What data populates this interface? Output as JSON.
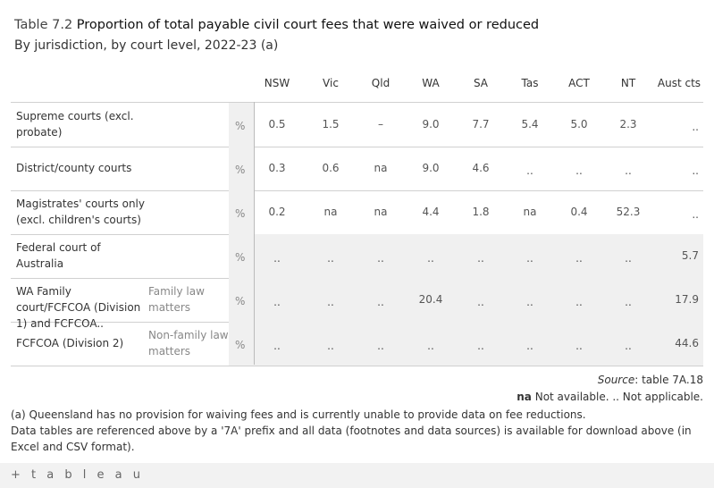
{
  "title_num": "Table 7.2",
  "title_text": "Proportion of total payable civil court fees that were waived or reduced",
  "subtitle": "By jurisdiction, by court level, 2022-23 (a)",
  "chart_data": {
    "type": "table",
    "columns": [
      "NSW",
      "Vic",
      "Qld",
      "WA",
      "SA",
      "Tas",
      "ACT",
      "NT",
      "Aust cts"
    ],
    "rows": [
      {
        "label": "Supreme courts (excl. probate)",
        "sublabel": "",
        "unit": "%",
        "values": [
          "0.5",
          "1.5",
          "–",
          "9.0",
          "7.7",
          "5.4",
          "5.0",
          "2.3",
          ".."
        ]
      },
      {
        "label": "District/county courts",
        "sublabel": "",
        "unit": "%",
        "values": [
          "0.3",
          "0.6",
          "na",
          "9.0",
          "4.6",
          "..",
          "..",
          "..",
          ".."
        ]
      },
      {
        "label": "Magistrates' courts only (excl. children's courts)",
        "sublabel": "",
        "unit": "%",
        "values": [
          "0.2",
          "na",
          "na",
          "4.4",
          "1.8",
          "na",
          "0.4",
          "52.3",
          ".."
        ]
      },
      {
        "label": "Federal court of Australia",
        "sublabel": "",
        "unit": "%",
        "values": [
          "..",
          "..",
          "..",
          "..",
          "..",
          "..",
          "..",
          "..",
          "5.7"
        ]
      },
      {
        "label": "WA Family court/FCFCOA (Division 1) and FCFCOA..",
        "sublabel": "Family law matters",
        "unit": "%",
        "values": [
          "..",
          "..",
          "..",
          "20.4",
          "..",
          "..",
          "..",
          "..",
          "17.9"
        ]
      },
      {
        "label": "FCFCOA (Division 2)",
        "sublabel": "Non-family law matters",
        "unit": "%",
        "values": [
          "..",
          "..",
          "..",
          "..",
          "..",
          "..",
          "..",
          "..",
          "44.6"
        ]
      }
    ]
  },
  "source_label": "Source",
  "source_text": ": table 7A.18",
  "legend_na": "na",
  "legend_text": "Not available. .. Not applicable.",
  "footnote_a": "(a) Queensland has no provision for waiving fees and is currently unable to provide data on fee reductions.",
  "footnote_b": "Data tables are referenced above by a '7A' prefix and all data (footnotes and data sources) is available for download above (in Excel and CSV format).",
  "footer_logo": "+ t a b l e a u"
}
